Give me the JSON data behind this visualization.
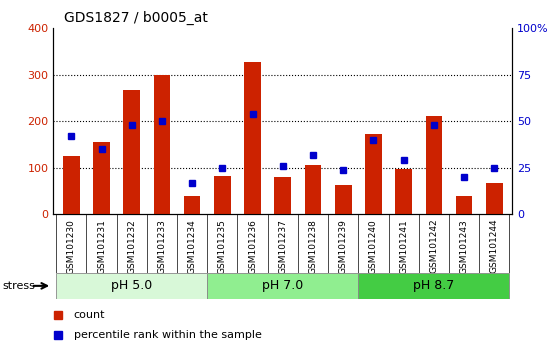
{
  "title": "GDS1827 / b0005_at",
  "samples": [
    "GSM101230",
    "GSM101231",
    "GSM101232",
    "GSM101233",
    "GSM101234",
    "GSM101235",
    "GSM101236",
    "GSM101237",
    "GSM101238",
    "GSM101239",
    "GSM101240",
    "GSM101241",
    "GSM101242",
    "GSM101243",
    "GSM101244"
  ],
  "counts": [
    125,
    155,
    268,
    300,
    40,
    83,
    328,
    80,
    105,
    62,
    172,
    97,
    212,
    40,
    68
  ],
  "percentile_ranks": [
    42,
    35,
    48,
    50,
    17,
    25,
    54,
    26,
    32,
    24,
    40,
    29,
    48,
    20,
    25
  ],
  "bar_color": "#cc2200",
  "dot_color": "#0000cc",
  "ylim_left": [
    0,
    400
  ],
  "ylim_right": [
    0,
    100
  ],
  "yticks_left": [
    0,
    100,
    200,
    300,
    400
  ],
  "yticks_right": [
    0,
    25,
    50,
    75,
    100
  ],
  "ytick_labels_right": [
    "0",
    "25",
    "50",
    "75",
    "100%"
  ],
  "left_tick_color": "#cc2200",
  "right_tick_color": "#0000cc",
  "plot_bg": "#ffffff",
  "tick_bg": "#c8c8c8",
  "groups": [
    {
      "label": "pH 5.0",
      "start": 0,
      "end": 5,
      "color": "#d8f8d8"
    },
    {
      "label": "pH 7.0",
      "start": 5,
      "end": 10,
      "color": "#90ee90"
    },
    {
      "label": "pH 8.7",
      "start": 10,
      "end": 15,
      "color": "#44cc44"
    }
  ],
  "stress_label": "stress",
  "legend_count_label": "count",
  "legend_pct_label": "percentile rank within the sample",
  "figsize": [
    5.6,
    3.54
  ],
  "dpi": 100
}
